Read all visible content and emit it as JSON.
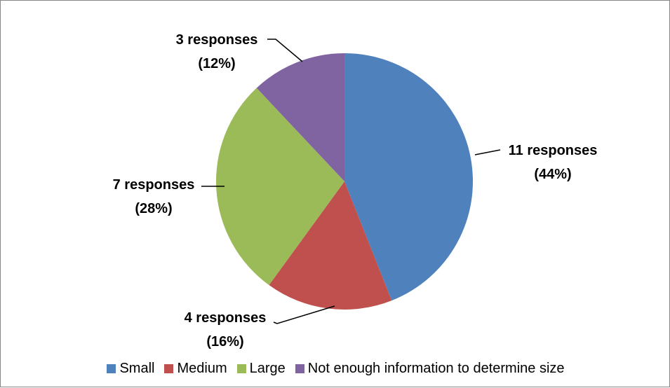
{
  "chart_data": {
    "type": "pie",
    "categories": [
      "Small",
      "Medium",
      "Large",
      "Not enough information to determine size"
    ],
    "values": [
      11,
      4,
      7,
      3
    ],
    "percentages": [
      44,
      16,
      28,
      12
    ],
    "colors": [
      "#4f81bd",
      "#c0504d",
      "#9bbb59",
      "#8064a2"
    ],
    "data_labels": [
      {
        "line1": "11 responses",
        "line2": "(44%)"
      },
      {
        "line1": "4 responses",
        "line2": "(16%)"
      },
      {
        "line1": "7 responses",
        "line2": "(28%)"
      },
      {
        "line1": "3 responses",
        "line2": "(12%)"
      }
    ],
    "legend_placement": "bottom",
    "title": ""
  }
}
